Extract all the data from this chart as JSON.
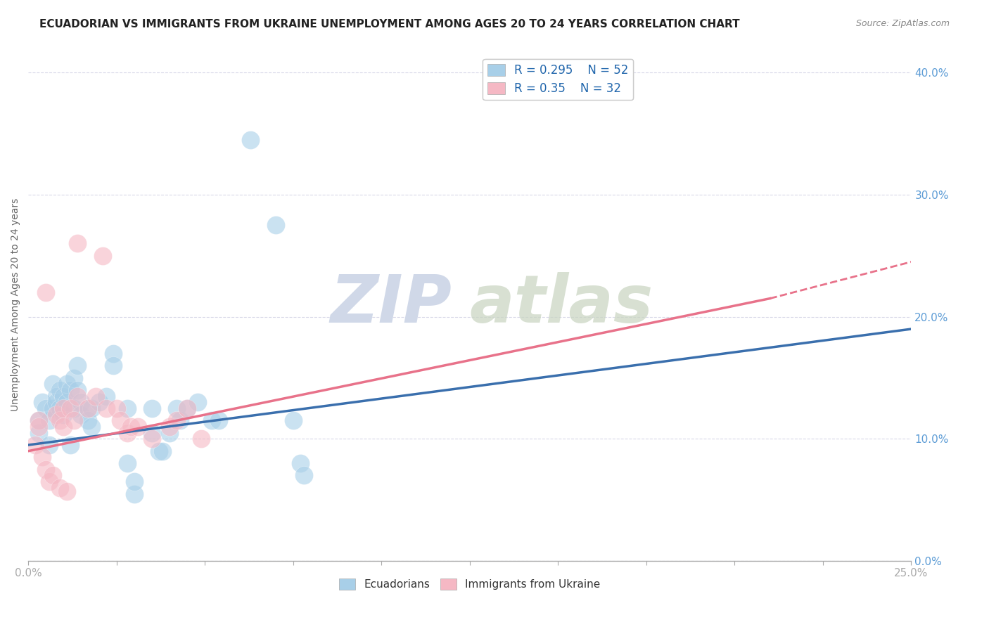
{
  "title": "ECUADORIAN VS IMMIGRANTS FROM UKRAINE UNEMPLOYMENT AMONG AGES 20 TO 24 YEARS CORRELATION CHART",
  "source": "Source: ZipAtlas.com",
  "ylabel": "Unemployment Among Ages 20 to 24 years",
  "xlim": [
    0.0,
    0.25
  ],
  "ylim": [
    0.0,
    0.42
  ],
  "xticks": [
    0.0,
    0.025,
    0.05,
    0.075,
    0.1,
    0.125,
    0.15,
    0.175,
    0.2,
    0.225,
    0.25
  ],
  "yticks": [
    0.0,
    0.1,
    0.2,
    0.3,
    0.4
  ],
  "blue_R": 0.295,
  "blue_N": 52,
  "pink_R": 0.35,
  "pink_N": 32,
  "blue_color": "#a8cfe8",
  "pink_color": "#f5b8c4",
  "blue_line_color": "#3a6fad",
  "pink_line_color": "#e8728a",
  "pink_line_dash_color": "#e8a0b0",
  "watermark_color": "#d0d8e8",
  "blue_points": [
    [
      0.003,
      0.105
    ],
    [
      0.003,
      0.115
    ],
    [
      0.004,
      0.13
    ],
    [
      0.005,
      0.125
    ],
    [
      0.006,
      0.115
    ],
    [
      0.006,
      0.095
    ],
    [
      0.007,
      0.145
    ],
    [
      0.007,
      0.125
    ],
    [
      0.008,
      0.135
    ],
    [
      0.008,
      0.13
    ],
    [
      0.009,
      0.125
    ],
    [
      0.009,
      0.14
    ],
    [
      0.01,
      0.135
    ],
    [
      0.01,
      0.12
    ],
    [
      0.011,
      0.13
    ],
    [
      0.011,
      0.145
    ],
    [
      0.012,
      0.14
    ],
    [
      0.012,
      0.095
    ],
    [
      0.013,
      0.15
    ],
    [
      0.013,
      0.125
    ],
    [
      0.014,
      0.16
    ],
    [
      0.014,
      0.14
    ],
    [
      0.015,
      0.13
    ],
    [
      0.015,
      0.12
    ],
    [
      0.017,
      0.125
    ],
    [
      0.017,
      0.115
    ],
    [
      0.018,
      0.125
    ],
    [
      0.018,
      0.11
    ],
    [
      0.02,
      0.13
    ],
    [
      0.022,
      0.135
    ],
    [
      0.024,
      0.17
    ],
    [
      0.024,
      0.16
    ],
    [
      0.028,
      0.125
    ],
    [
      0.028,
      0.08
    ],
    [
      0.03,
      0.055
    ],
    [
      0.03,
      0.065
    ],
    [
      0.035,
      0.125
    ],
    [
      0.035,
      0.105
    ],
    [
      0.037,
      0.09
    ],
    [
      0.038,
      0.09
    ],
    [
      0.04,
      0.105
    ],
    [
      0.042,
      0.125
    ],
    [
      0.043,
      0.115
    ],
    [
      0.045,
      0.125
    ],
    [
      0.048,
      0.13
    ],
    [
      0.052,
      0.115
    ],
    [
      0.054,
      0.115
    ],
    [
      0.063,
      0.345
    ],
    [
      0.07,
      0.275
    ],
    [
      0.075,
      0.115
    ],
    [
      0.077,
      0.08
    ],
    [
      0.078,
      0.07
    ]
  ],
  "pink_points": [
    [
      0.002,
      0.095
    ],
    [
      0.003,
      0.115
    ],
    [
      0.003,
      0.11
    ],
    [
      0.004,
      0.085
    ],
    [
      0.005,
      0.22
    ],
    [
      0.005,
      0.075
    ],
    [
      0.006,
      0.065
    ],
    [
      0.007,
      0.07
    ],
    [
      0.008,
      0.12
    ],
    [
      0.009,
      0.115
    ],
    [
      0.009,
      0.06
    ],
    [
      0.01,
      0.11
    ],
    [
      0.01,
      0.125
    ],
    [
      0.011,
      0.057
    ],
    [
      0.012,
      0.125
    ],
    [
      0.013,
      0.115
    ],
    [
      0.014,
      0.135
    ],
    [
      0.014,
      0.26
    ],
    [
      0.017,
      0.125
    ],
    [
      0.019,
      0.135
    ],
    [
      0.021,
      0.25
    ],
    [
      0.022,
      0.125
    ],
    [
      0.025,
      0.125
    ],
    [
      0.026,
      0.115
    ],
    [
      0.028,
      0.105
    ],
    [
      0.029,
      0.11
    ],
    [
      0.031,
      0.11
    ],
    [
      0.035,
      0.1
    ],
    [
      0.04,
      0.11
    ],
    [
      0.042,
      0.115
    ],
    [
      0.045,
      0.125
    ],
    [
      0.049,
      0.1
    ]
  ],
  "background_color": "#ffffff",
  "grid_color": "#d8d8e8",
  "title_fontsize": 11,
  "axis_label_fontsize": 10,
  "tick_fontsize": 11,
  "legend_fontsize": 12
}
